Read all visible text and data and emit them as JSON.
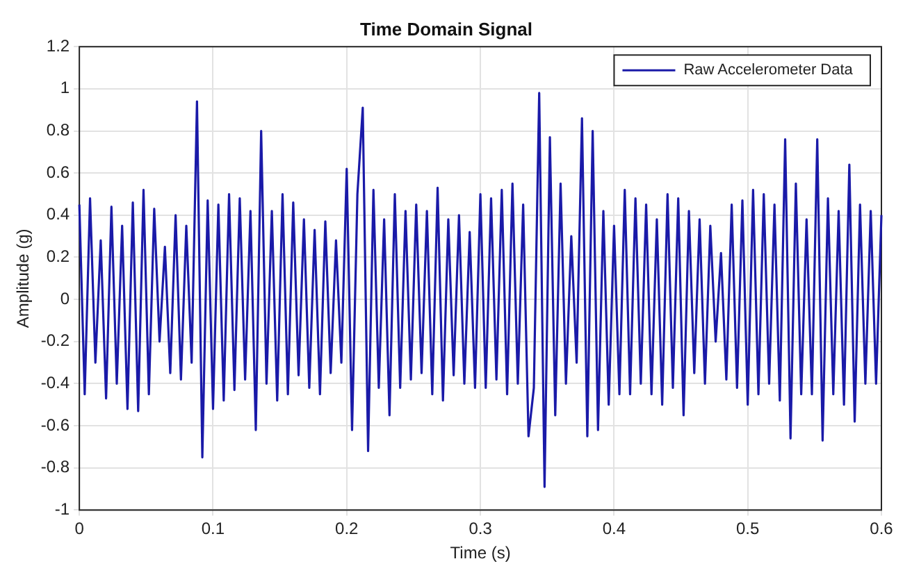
{
  "chart_data": {
    "type": "line",
    "title": "Time Domain Signal",
    "xlabel": "Time (s)",
    "ylabel": "Amplitude (g)",
    "xlim": [
      0,
      0.6
    ],
    "xticks": [
      0,
      0.1,
      0.2,
      0.3,
      0.4,
      0.5,
      0.6
    ],
    "ylim": [
      -1,
      1.2
    ],
    "yticks": [
      -1,
      -0.8,
      -0.6,
      -0.4,
      -0.2,
      0,
      0.2,
      0.4,
      0.6,
      0.8,
      1,
      1.2
    ],
    "grid": true,
    "legend": "top right",
    "marker": "none",
    "line_style": "solid",
    "x": [
      0,
      0.004,
      0.008,
      0.012,
      0.016,
      0.02,
      0.024,
      0.028,
      0.032,
      0.036,
      0.04,
      0.044,
      0.048,
      0.052,
      0.056,
      0.06,
      0.064,
      0.068,
      0.072,
      0.076,
      0.08,
      0.084,
      0.088,
      0.092,
      0.096,
      0.1,
      0.104,
      0.108,
      0.112,
      0.116,
      0.12,
      0.124,
      0.128,
      0.132,
      0.136,
      0.14,
      0.144,
      0.148,
      0.152,
      0.156,
      0.16,
      0.164,
      0.168,
      0.172,
      0.176,
      0.18,
      0.184,
      0.188,
      0.192,
      0.196,
      0.2,
      0.204,
      0.208,
      0.212,
      0.216,
      0.22,
      0.224,
      0.228,
      0.232,
      0.236,
      0.24,
      0.244,
      0.248,
      0.252,
      0.256,
      0.26,
      0.264,
      0.268,
      0.272,
      0.276,
      0.28,
      0.284,
      0.288,
      0.292,
      0.296,
      0.3,
      0.304,
      0.308,
      0.312,
      0.316,
      0.32,
      0.324,
      0.328,
      0.332,
      0.336,
      0.34,
      0.344,
      0.348,
      0.352,
      0.356,
      0.36,
      0.364,
      0.368,
      0.372,
      0.376,
      0.38,
      0.384,
      0.388,
      0.392,
      0.396,
      0.4,
      0.404,
      0.408,
      0.412,
      0.416,
      0.42,
      0.424,
      0.428,
      0.432,
      0.436,
      0.44,
      0.444,
      0.448,
      0.452,
      0.456,
      0.46,
      0.464,
      0.468,
      0.472,
      0.476,
      0.48,
      0.484,
      0.488,
      0.492,
      0.496,
      0.5,
      0.504,
      0.508,
      0.512,
      0.516,
      0.52,
      0.524,
      0.528,
      0.532,
      0.536,
      0.54,
      0.544,
      0.548,
      0.552,
      0.556,
      0.56,
      0.564,
      0.568,
      0.572,
      0.576,
      0.58,
      0.584,
      0.588,
      0.592,
      0.596,
      0.6
    ],
    "series": [
      {
        "name": "Raw Accelerometer Data",
        "color": "#1a1aa8",
        "values": [
          0.45,
          -0.45,
          0.48,
          -0.3,
          0.28,
          -0.47,
          0.44,
          -0.4,
          0.35,
          -0.52,
          0.46,
          -0.53,
          0.52,
          -0.45,
          0.43,
          -0.2,
          0.25,
          -0.35,
          0.4,
          -0.38,
          0.35,
          -0.3,
          0.94,
          -0.75,
          0.47,
          -0.52,
          0.45,
          -0.48,
          0.5,
          -0.43,
          0.48,
          -0.38,
          0.42,
          -0.62,
          0.8,
          -0.4,
          0.42,
          -0.48,
          0.5,
          -0.45,
          0.46,
          -0.36,
          0.38,
          -0.42,
          0.33,
          -0.45,
          0.37,
          -0.35,
          0.28,
          -0.3,
          0.62,
          -0.62,
          0.5,
          0.91,
          -0.72,
          0.52,
          -0.42,
          0.38,
          -0.55,
          0.5,
          -0.42,
          0.42,
          -0.38,
          0.45,
          -0.35,
          0.42,
          -0.45,
          0.53,
          -0.48,
          0.38,
          -0.36,
          0.4,
          -0.4,
          0.32,
          -0.42,
          0.5,
          -0.42,
          0.48,
          -0.38,
          0.52,
          -0.45,
          0.55,
          -0.4,
          0.45,
          -0.65,
          -0.42,
          0.98,
          -0.89,
          0.77,
          -0.55,
          0.55,
          -0.4,
          0.3,
          -0.3,
          0.86,
          -0.65,
          0.8,
          -0.62,
          0.42,
          -0.5,
          0.35,
          -0.45,
          0.52,
          -0.45,
          0.48,
          -0.4,
          0.45,
          -0.45,
          0.38,
          -0.5,
          0.5,
          -0.42,
          0.48,
          -0.55,
          0.42,
          -0.35,
          0.38,
          -0.4,
          0.35,
          -0.2,
          0.22,
          -0.38,
          0.45,
          -0.42,
          0.47,
          -0.5,
          0.52,
          -0.45,
          0.5,
          -0.4,
          0.45,
          -0.48,
          0.76,
          -0.66,
          0.55,
          -0.45,
          0.38,
          -0.45,
          0.76,
          -0.67,
          0.48,
          -0.45,
          0.42,
          -0.5,
          0.64,
          -0.58,
          0.45,
          -0.4,
          0.42,
          -0.4,
          0.4
        ]
      }
    ]
  }
}
